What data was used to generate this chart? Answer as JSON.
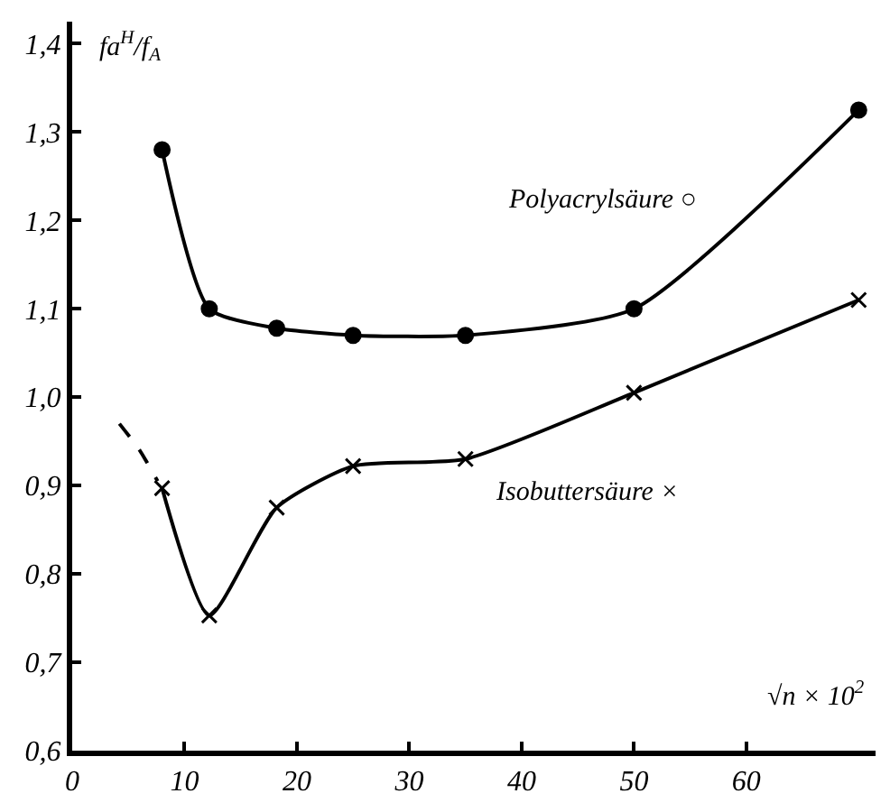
{
  "chart_data": {
    "type": "line",
    "xlabel": "√n × 10$^{2}$",
    "ylabel": "fa$^{H}$/f$_{A}$",
    "series": [
      {
        "name": "Polyacrylsäure ○",
        "color": "#000000",
        "marker": "circle",
        "line_style": "solid",
        "x": [
          8,
          12.2,
          18.2,
          25,
          35,
          50,
          70
        ],
        "values": [
          1.28,
          1.1,
          1.078,
          1.07,
          1.07,
          1.1,
          1.325
        ]
      },
      {
        "name": "Isobuttersäure ×",
        "color": "#000000",
        "marker": "cross",
        "line_style": "solid",
        "x": [
          8,
          12.2,
          18.2,
          25,
          35,
          50,
          70
        ],
        "values": [
          0.897,
          0.753,
          0.875,
          0.922,
          0.93,
          1.005,
          1.11
        ]
      },
      {
        "color": "#000000",
        "marker": "none",
        "line_style": "dashed",
        "x": [
          4.2,
          6,
          7.6
        ],
        "values": [
          0.97,
          0.94,
          0.905
        ]
      }
    ],
    "xlim": [
      0,
      71.5
    ],
    "ylim": [
      0.6,
      1.425
    ],
    "xticks": [
      0,
      10,
      20,
      30,
      40,
      50,
      60
    ],
    "yticks": [
      {
        "value": 0.6,
        "label": "0,6"
      },
      {
        "value": 0.7,
        "label": "0,7"
      },
      {
        "value": 0.8,
        "label": "0,8"
      },
      {
        "value": 0.9,
        "label": "0,9"
      },
      {
        "value": 1.0,
        "label": "1,0"
      },
      {
        "value": 1.1,
        "label": "1,1"
      },
      {
        "value": 1.2,
        "label": "1,2"
      },
      {
        "value": 1.3,
        "label": "1,3"
      },
      {
        "value": 1.4,
        "label": "1,4"
      }
    ],
    "legend": false
  }
}
